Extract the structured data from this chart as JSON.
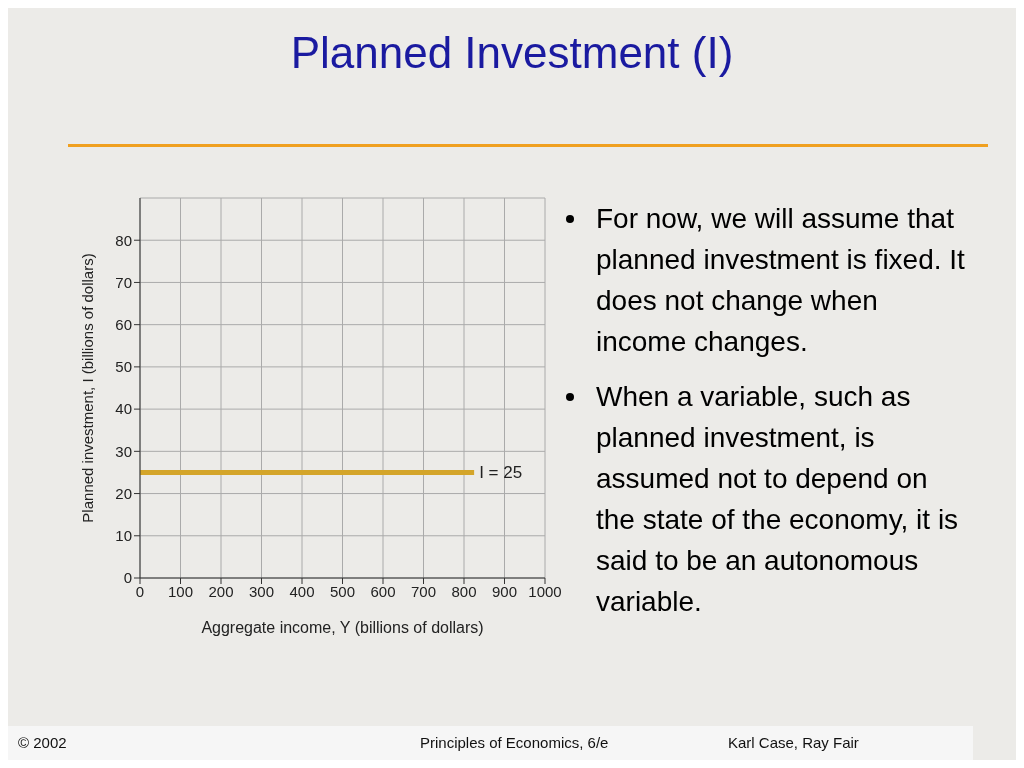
{
  "chart_data": {
    "type": "line",
    "title": "Planned Investment (I)",
    "xlabel": "Aggregate income, Y (billions of dollars)",
    "ylabel": "Planned investment, I  (billions of dollars)",
    "x": [
      0,
      825
    ],
    "series": [
      {
        "color": "#d4a52a",
        "values": [
          25,
          25
        ]
      }
    ],
    "xlim": [
      0,
      1000
    ],
    "xticks": [
      0,
      100,
      200,
      300,
      400,
      500,
      600,
      700,
      800,
      900,
      1000
    ],
    "ylim": [
      0,
      90
    ],
    "yticks": [
      0,
      10,
      20,
      30,
      40,
      50,
      60,
      70,
      80
    ],
    "grid": true,
    "legend": false,
    "marker": "none",
    "line_style": "solid",
    "annotations": [
      {
        "text": "I = 25",
        "x": 825,
        "y": 25
      },
      "For now, we will assume that planned investment is fixed.  It does not change when income changes.",
      "When a variable, such as planned investment, is assumed not to depend on the state of the economy, it is said to be an autonomous variable.",
      "© 2002",
      "Principles of Economics, 6/e",
      "Karl Case, Ray Fair"
    ]
  }
}
